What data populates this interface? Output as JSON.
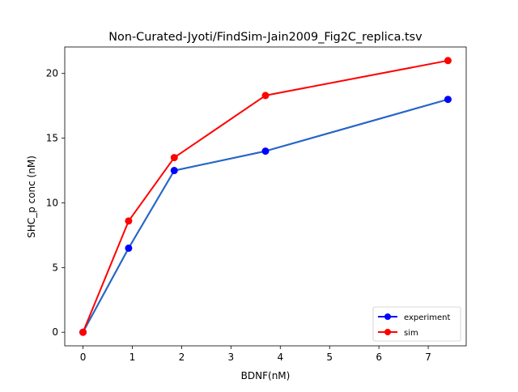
{
  "chart_data": {
    "type": "line",
    "title": "Non-Curated-Jyoti/FindSim-Jain2009_Fig2C_replica.tsv",
    "xlabel": "BDNF(nM)",
    "ylabel": "SHC_p conc (nM)",
    "xlim": [
      -0.37,
      7.77
    ],
    "ylim": [
      -1.05,
      22.05
    ],
    "xticks": [
      0,
      1,
      2,
      3,
      4,
      5,
      6,
      7
    ],
    "yticks": [
      0,
      5,
      10,
      15,
      20
    ],
    "grid": false,
    "legend_position": "lower-right",
    "series": [
      {
        "name": "experiment",
        "color": "#0000ff",
        "x": [
          0,
          0.925,
          1.85,
          3.7,
          7.4
        ],
        "y": [
          0,
          6.5,
          12.5,
          14.0,
          18.0
        ]
      },
      {
        "name": "sim",
        "color": "#ff0000",
        "x": [
          0,
          0.925,
          1.85,
          3.7,
          7.4
        ],
        "y": [
          0,
          8.6,
          13.5,
          18.3,
          21.0
        ]
      }
    ],
    "overlay_line_color": "#1f77b4"
  }
}
